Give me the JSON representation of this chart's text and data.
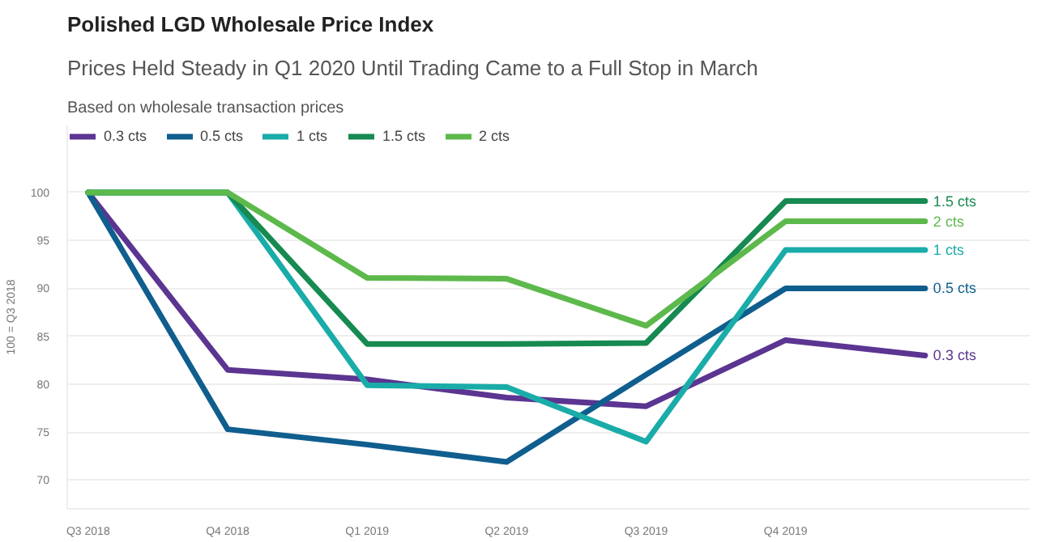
{
  "chart_data": {
    "type": "line",
    "title": "Polished LGD Wholesale Price Index",
    "subtitle": "Prices Held Steady in Q1 2020 Until Trading Came to a Full Stop in March",
    "annotations": [
      "Based on wholesale transaction prices"
    ],
    "ylabel": "100 = Q3 2018",
    "categories": [
      "Q3 2018",
      "Q4 2018",
      "Q1 2019",
      "Q2 2019",
      "Q3 2019",
      "Q4 2019",
      null
    ],
    "series": [
      {
        "name": "0.3 cts",
        "color": "#5b3591",
        "values": [
          100,
          81.5,
          80.5,
          78.6,
          77.7,
          84.6,
          83.0
        ]
      },
      {
        "name": "0.5 cts",
        "color": "#0f5e8e",
        "values": [
          100,
          75.3,
          73.7,
          71.9,
          81.0,
          90,
          90
        ]
      },
      {
        "name": "1 cts",
        "color": "#1aaca8",
        "values": [
          100,
          100,
          79.9,
          79.7,
          74.0,
          94,
          94
        ]
      },
      {
        "name": "1.5 cts",
        "color": "#168a50",
        "values": [
          100,
          100,
          84.2,
          84.2,
          84.3,
          99.1,
          99.1
        ]
      },
      {
        "name": "2 cts",
        "color": "#5db94b",
        "values": [
          100,
          100,
          91.1,
          91.0,
          86.1,
          97,
          97
        ]
      }
    ],
    "ylim": [
      67,
      107
    ],
    "yticks": [
      70,
      75,
      80,
      85,
      90,
      95,
      100
    ],
    "grid": "y",
    "legend": "top left",
    "marker": "none",
    "line_style": "solid"
  }
}
